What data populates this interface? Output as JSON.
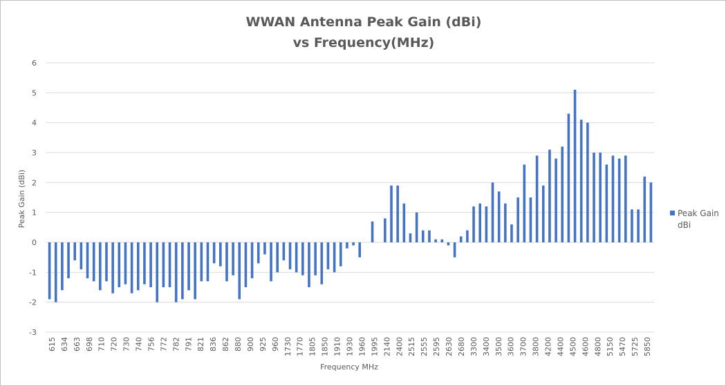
{
  "chart_data": {
    "type": "bar",
    "title_line1": "WWAN Antenna Peak Gain (dBi)",
    "title_line2": "vs Frequency(MHz)",
    "xlabel": "Frequency MHz",
    "ylabel": "Peak Gain (dBi)",
    "ylim": [
      -3,
      6
    ],
    "yticks": [
      -3,
      -2,
      -1,
      0,
      1,
      2,
      3,
      4,
      5,
      6
    ],
    "grid": "horizontal",
    "legend_position": "right",
    "bar_color": "#4472c4",
    "series": [
      {
        "name": "Peak Gain dBi",
        "values": [
          -1.9,
          -2.0,
          -1.6,
          -1.2,
          -0.6,
          -0.9,
          -1.2,
          -1.3,
          -1.6,
          -1.3,
          -1.7,
          -1.5,
          -1.4,
          -1.7,
          -1.6,
          -1.4,
          -1.5,
          -2.0,
          -1.5,
          -1.5,
          -2.0,
          -1.9,
          -1.6,
          -1.9,
          -1.3,
          -1.3,
          -0.7,
          -0.8,
          -1.3,
          -1.1,
          -1.9,
          -1.5,
          -1.2,
          -0.7,
          -0.4,
          -1.3,
          -1.0,
          -0.6,
          -0.9,
          -1.0,
          -1.1,
          -1.5,
          -1.1,
          -1.4,
          -0.9,
          -1.0,
          -0.8,
          -0.2,
          -0.1,
          -0.5,
          0.0,
          0.7,
          0.0,
          0.8,
          1.9,
          1.9,
          1.3,
          0.3,
          1.0,
          0.4,
          0.4,
          0.1,
          0.1,
          -0.1,
          -0.5,
          0.2,
          0.4,
          1.2,
          1.3,
          1.2,
          2.0,
          1.7,
          1.3,
          0.6,
          1.5,
          2.6,
          1.5,
          2.9,
          1.9,
          3.1,
          2.8,
          3.2,
          4.3,
          5.1,
          4.1,
          4.0,
          3.0,
          3.0,
          2.6,
          2.9,
          2.8,
          2.9,
          1.1,
          1.1,
          2.2,
          2.0
        ]
      }
    ],
    "tick_labels": [
      "615",
      "634",
      "663",
      "698",
      "710",
      "720",
      "730",
      "740",
      "756",
      "772",
      "782",
      "791",
      "821",
      "836",
      "862",
      "880",
      "900",
      "925",
      "960",
      "1730",
      "1770",
      "1805",
      "1850",
      "1910",
      "1930",
      "1960",
      "1995",
      "2140",
      "2400",
      "2515",
      "2555",
      "2595",
      "2630",
      "2680",
      "3300",
      "3400",
      "3500",
      "3600",
      "3700",
      "3800",
      "4200",
      "4400",
      "4500",
      "4600",
      "4800",
      "5150",
      "5470",
      "5725",
      "5850"
    ]
  }
}
